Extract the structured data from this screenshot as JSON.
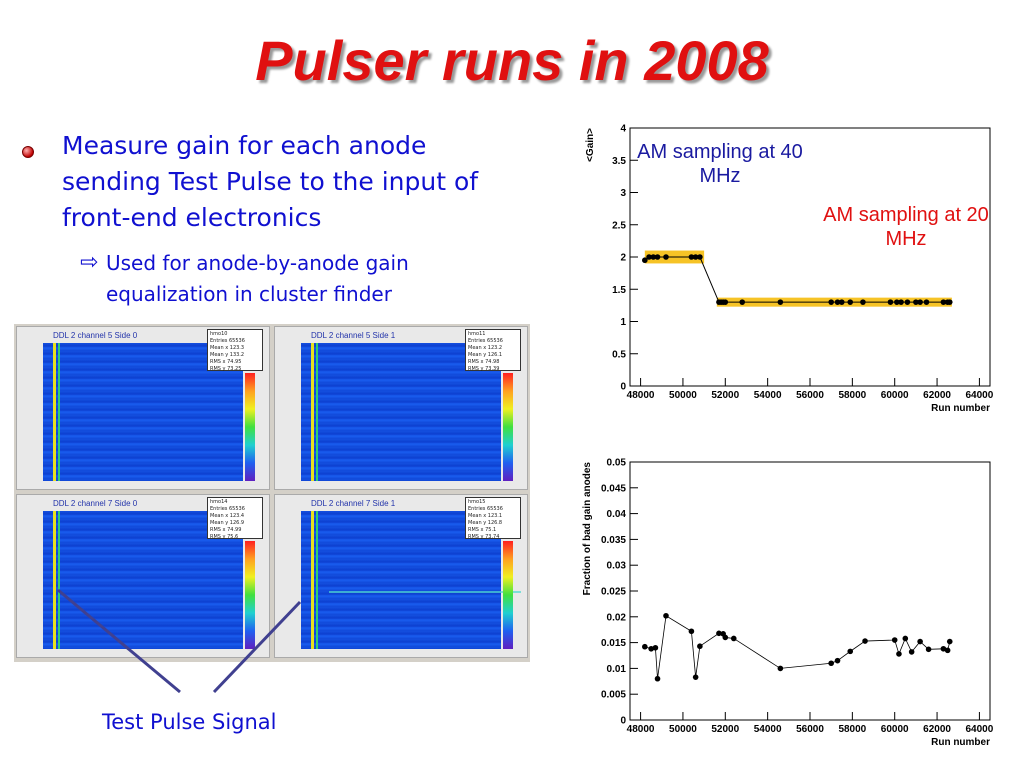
{
  "slide": {
    "title": "Pulser runs in 2008",
    "bullet": "Measure gain for each anode sending Test Pulse to the input of front-end electronics",
    "sub_bullet": "Used for anode-by-anode gain equalization in cluster finder",
    "test_pulse_label": "Test Pulse Signal",
    "annotation_40": "AM sampling at 40 MHz",
    "annotation_20": "AM sampling at 20 MHz",
    "colors": {
      "title": "#e01010",
      "text": "#1010d0",
      "annotation_40": "#1a1aa0",
      "annotation_20": "#e01010",
      "band": "#f5b800"
    }
  },
  "panels": [
    {
      "title": "DDL 2 channel 5 Side 0",
      "stats": [
        "hmo10",
        "Entries 65536",
        "Mean x 123.3",
        "Mean y 133.2",
        "RMS x 74.95",
        "RMS y 73.25"
      ]
    },
    {
      "title": "DDL 2 channel 5 Side 1",
      "stats": [
        "hmo11",
        "Entries 65536",
        "Mean x 123.2",
        "Mean y 126.1",
        "RMS x 74.98",
        "RMS y 73.39"
      ]
    },
    {
      "title": "DDL 2 channel 7 Side 0",
      "stats": [
        "hmo14",
        "Entries 65536",
        "Mean x 123.4",
        "Mean y 126.9",
        "RMS x 74.99",
        "RMS y 75.6"
      ]
    },
    {
      "title": "DDL 2 channel 7 Side 1",
      "stats": [
        "hmo15",
        "Entries 65536",
        "Mean x 123.1",
        "Mean y 126.8",
        "RMS x 75.1",
        "RMS y 73.74"
      ]
    }
  ],
  "chart_data": [
    {
      "type": "line",
      "xlabel": "Run number",
      "ylabel": "<Gain>",
      "xlim": [
        47500,
        64500
      ],
      "ylim": [
        0,
        4
      ],
      "xticks": [
        48000,
        50000,
        52000,
        54000,
        56000,
        58000,
        60000,
        62000,
        64000
      ],
      "yticks": [
        0,
        0.5,
        1,
        1.5,
        2,
        2.5,
        3,
        3.5,
        4
      ],
      "band": [
        {
          "x0": 48200,
          "x1": 51000,
          "y0": 1.9,
          "y1": 2.1
        },
        {
          "x0": 51600,
          "x1": 62700,
          "y0": 1.23,
          "y1": 1.37
        }
      ],
      "x": [
        48200,
        48400,
        48600,
        48800,
        49200,
        50400,
        50600,
        50800,
        51700,
        51800,
        51900,
        52000,
        52800,
        54600,
        57000,
        57300,
        57500,
        57900,
        58500,
        59800,
        60100,
        60300,
        60600,
        61000,
        61200,
        61500,
        62300,
        62500,
        62600
      ],
      "y": [
        1.95,
        2.0,
        2.0,
        2.0,
        2.0,
        2.0,
        2.0,
        2.0,
        1.3,
        1.3,
        1.3,
        1.3,
        1.3,
        1.3,
        1.3,
        1.3,
        1.3,
        1.3,
        1.3,
        1.3,
        1.3,
        1.3,
        1.3,
        1.3,
        1.3,
        1.3,
        1.3,
        1.3,
        1.3
      ]
    },
    {
      "type": "line",
      "xlabel": "Run number",
      "ylabel": "Fraction of bad gain anodes",
      "xlim": [
        47500,
        64500
      ],
      "ylim": [
        0,
        0.05
      ],
      "xticks": [
        48000,
        50000,
        52000,
        54000,
        56000,
        58000,
        60000,
        62000,
        64000
      ],
      "yticks": [
        0,
        0.005,
        0.01,
        0.015,
        0.02,
        0.025,
        0.03,
        0.035,
        0.04,
        0.045,
        0.05
      ],
      "x": [
        48200,
        48500,
        48700,
        48800,
        49200,
        50400,
        50600,
        50800,
        51700,
        51900,
        52000,
        52400,
        54600,
        57000,
        57300,
        57900,
        58600,
        60000,
        60200,
        60500,
        60800,
        61200,
        61600,
        62300,
        62500,
        62600
      ],
      "y": [
        0.0142,
        0.0138,
        0.014,
        0.008,
        0.0202,
        0.0172,
        0.0083,
        0.0143,
        0.0168,
        0.0167,
        0.016,
        0.0158,
        0.01,
        0.011,
        0.0115,
        0.0133,
        0.0153,
        0.0155,
        0.0128,
        0.0158,
        0.0132,
        0.0152,
        0.0137,
        0.0138,
        0.0135,
        0.0152
      ]
    }
  ]
}
